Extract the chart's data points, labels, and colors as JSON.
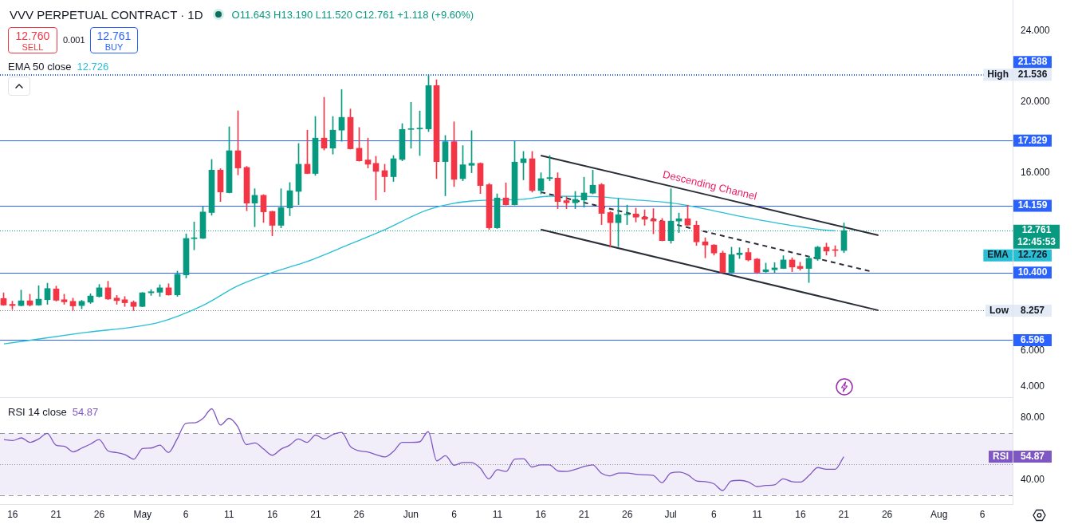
{
  "chart_data": [
    {
      "type": "candlestick",
      "title": "VVV PERPETUAL CONTRACT · 1D",
      "subtitle": "O11.643 H13.190 L11.520 C12.761 +1.118 (+9.60%)",
      "x": [
        "--04-15",
        "--04-16",
        "--04-17",
        "--04-18",
        "--04-19",
        "--04-20",
        "--04-21",
        "--04-22",
        "--04-23",
        "--04-24",
        "--04-25",
        "--04-26",
        "--04-27",
        "--04-28",
        "--04-29",
        "--04-30",
        "--05-01",
        "--05-02",
        "--05-03",
        "--05-04",
        "--05-05",
        "--05-06",
        "--05-07",
        "--05-08",
        "--05-09",
        "--05-10",
        "--05-11",
        "--05-12",
        "--05-13",
        "--05-14",
        "--05-15",
        "--05-16",
        "--05-17",
        "--05-18",
        "--05-19",
        "--05-20",
        "--05-21",
        "--05-22",
        "--05-23",
        "--05-24",
        "--05-25",
        "--05-26",
        "--05-27",
        "--05-28",
        "--05-29",
        "--05-30",
        "--05-31",
        "--06-01",
        "--06-02",
        "--06-03",
        "--06-04",
        "--06-05",
        "--06-06",
        "--06-07",
        "--06-08",
        "--06-09",
        "--06-10",
        "--06-11",
        "--06-12",
        "--06-13",
        "--06-14",
        "--06-15",
        "--06-16",
        "--06-17",
        "--06-18",
        "--06-19",
        "--06-20",
        "--06-21",
        "--06-22",
        "--06-23",
        "--06-24",
        "--06-25",
        "--06-26",
        "--06-27",
        "--06-28",
        "--06-29",
        "--06-30",
        "--07-01",
        "--07-02",
        "--07-03",
        "--07-04",
        "--07-05",
        "--07-06",
        "--07-07",
        "--07-08",
        "--07-09",
        "--07-10",
        "--07-11",
        "--07-12",
        "--07-13",
        "--07-14",
        "--07-15",
        "--07-16",
        "--07-17",
        "--07-18",
        "--07-19",
        "--07-20",
        "--07-21"
      ],
      "ohlc": [
        [
          8.94,
          9.26,
          8.55,
          8.57
        ],
        [
          8.61,
          8.79,
          8.32,
          8.54
        ],
        [
          8.54,
          9.41,
          8.52,
          8.81
        ],
        [
          8.81,
          9.18,
          8.51,
          8.57
        ],
        [
          8.57,
          9.66,
          8.55,
          8.9
        ],
        [
          8.87,
          9.8,
          8.61,
          9.5
        ],
        [
          9.48,
          9.64,
          8.79,
          8.84
        ],
        [
          8.87,
          9.18,
          8.61,
          8.75
        ],
        [
          8.78,
          8.96,
          8.27,
          8.52
        ],
        [
          8.54,
          8.84,
          8.36,
          8.78
        ],
        [
          8.73,
          9.2,
          8.66,
          9.08
        ],
        [
          9.05,
          9.73,
          9.02,
          9.54
        ],
        [
          9.54,
          9.91,
          8.88,
          8.91
        ],
        [
          8.96,
          9.11,
          8.61,
          8.82
        ],
        [
          8.87,
          9.05,
          8.49,
          8.7
        ],
        [
          8.73,
          8.81,
          8.257,
          8.49
        ],
        [
          8.49,
          9.28,
          8.47,
          9.26
        ],
        [
          9.26,
          9.44,
          9.11,
          9.32
        ],
        [
          9.29,
          9.71,
          9.06,
          9.54
        ],
        [
          9.54,
          9.77,
          9.12,
          9.14
        ],
        [
          9.14,
          10.48,
          9.06,
          10.3
        ],
        [
          10.27,
          12.58,
          10.09,
          12.32
        ],
        [
          12.31,
          13.25,
          11.68,
          12.36
        ],
        [
          12.33,
          14.11,
          12.31,
          13.81
        ],
        [
          13.78,
          16.77,
          13.63,
          16.17
        ],
        [
          16.17,
          16.25,
          14.4,
          14.94
        ],
        [
          14.9,
          18.61,
          14.88,
          17.26
        ],
        [
          17.26,
          19.51,
          15.9,
          16.29
        ],
        [
          16.32,
          16.38,
          13.88,
          14.31
        ],
        [
          14.31,
          15.12,
          12.98,
          14.75
        ],
        [
          14.75,
          14.79,
          13.22,
          13.82
        ],
        [
          13.84,
          13.86,
          12.47,
          13.06
        ],
        [
          13.06,
          15.12,
          12.92,
          14.06
        ],
        [
          14.04,
          15.47,
          13.6,
          15.01
        ],
        [
          14.97,
          17.67,
          14.22,
          16.5
        ],
        [
          16.5,
          18.42,
          15.96,
          15.98
        ],
        [
          15.98,
          19.19,
          15.87,
          17.97
        ],
        [
          17.97,
          20.27,
          17.3,
          17.41
        ],
        [
          17.41,
          19.19,
          17.07,
          18.42
        ],
        [
          18.42,
          20.71,
          17.79,
          19.14
        ],
        [
          19.14,
          19.61,
          17.35,
          17.37
        ],
        [
          17.4,
          18.57,
          16.67,
          16.69
        ],
        [
          16.74,
          17.97,
          16.29,
          16.5
        ],
        [
          16.55,
          16.95,
          14.49,
          16.1
        ],
        [
          16.14,
          16.5,
          14.94,
          15.8
        ],
        [
          15.8,
          16.99,
          15.53,
          16.81
        ],
        [
          16.77,
          18.79,
          16.69,
          18.46
        ],
        [
          18.46,
          19.99,
          17.4,
          18.49
        ],
        [
          18.49,
          19.5,
          16.99,
          18.53
        ],
        [
          18.49,
          21.536,
          18.34,
          20.93
        ],
        [
          20.93,
          21.26,
          15.69,
          16.65
        ],
        [
          16.65,
          18.12,
          14.72,
          17.77
        ],
        [
          17.77,
          18.89,
          15.24,
          15.65
        ],
        [
          15.69,
          17.55,
          15.57,
          16.47
        ],
        [
          16.44,
          18.39,
          16.02,
          16.55
        ],
        [
          16.55,
          16.58,
          14.85,
          15.3
        ],
        [
          15.35,
          15.42,
          12.83,
          12.92
        ],
        [
          12.92,
          14.83,
          12.88,
          14.6
        ],
        [
          14.6,
          15.45,
          14.2,
          14.22
        ],
        [
          14.22,
          17.82,
          14.2,
          16.62
        ],
        [
          16.59,
          17.22,
          15.62,
          16.81
        ],
        [
          16.81,
          17.22,
          14.93,
          15.02
        ],
        [
          15.02,
          16.02,
          14.83,
          15.69
        ],
        [
          15.69,
          16.99,
          15.57,
          15.75
        ],
        [
          15.72,
          16.02,
          14.0,
          14.4
        ],
        [
          14.45,
          14.67,
          14.0,
          14.33
        ],
        [
          14.33,
          14.97,
          14.0,
          14.52
        ],
        [
          14.49,
          15.77,
          14.08,
          14.88
        ],
        [
          14.87,
          16.17,
          14.83,
          15.32
        ],
        [
          15.35,
          15.42,
          13.1,
          13.73
        ],
        [
          13.78,
          13.85,
          11.83,
          13.21
        ],
        [
          13.21,
          14.56,
          11.86,
          13.66
        ],
        [
          13.66,
          14.2,
          13.1,
          13.7
        ],
        [
          13.7,
          14.03,
          13.25,
          13.52
        ],
        [
          13.52,
          13.93,
          13.06,
          13.4
        ],
        [
          13.4,
          14.0,
          12.58,
          13.3
        ],
        [
          13.3,
          13.45,
          12.18,
          12.2
        ],
        [
          12.2,
          15.12,
          12.05,
          13.3
        ],
        [
          13.3,
          13.75,
          12.65,
          13.43
        ],
        [
          13.43,
          14.2,
          13.05,
          13.07
        ],
        [
          13.07,
          13.3,
          11.93,
          12.13
        ],
        [
          12.13,
          12.36,
          11.23,
          11.95
        ],
        [
          11.95,
          11.98,
          11.38,
          11.5
        ],
        [
          11.5,
          11.61,
          10.4,
          10.41
        ],
        [
          10.41,
          11.83,
          10.34,
          11.41
        ],
        [
          11.41,
          11.8,
          11.19,
          11.5
        ],
        [
          11.53,
          11.77,
          11.05,
          11.11
        ],
        [
          11.16,
          11.2,
          10.34,
          10.41
        ],
        [
          10.45,
          10.93,
          10.41,
          10.56
        ],
        [
          10.56,
          10.96,
          10.38,
          10.66
        ],
        [
          10.63,
          11.35,
          10.62,
          11.11
        ],
        [
          11.11,
          11.23,
          10.45,
          10.71
        ],
        [
          10.75,
          10.98,
          10.53,
          10.63
        ],
        [
          10.63,
          11.31,
          9.84,
          11.2
        ],
        [
          11.16,
          11.88,
          11.08,
          11.83
        ],
        [
          11.83,
          12.06,
          11.38,
          11.61
        ],
        [
          11.66,
          11.91,
          11.31,
          11.643
        ],
        [
          11.643,
          13.19,
          11.52,
          12.761
        ]
      ],
      "colors": [
        "#f23645",
        "#f23645",
        "#089981",
        "#f23645",
        "#089981",
        "#089981",
        "#f23645",
        "#f23645",
        "#f23645",
        "#089981",
        "#089981",
        "#089981",
        "#f23645",
        "#f23645",
        "#f23645",
        "#f23645",
        "#089981",
        "#089981",
        "#089981",
        "#f23645",
        "#089981",
        "#089981",
        "#089981",
        "#089981",
        "#089981",
        "#f23645",
        "#089981",
        "#f23645",
        "#f23645",
        "#089981",
        "#f23645",
        "#f23645",
        "#089981",
        "#089981",
        "#089981",
        "#f23645",
        "#089981",
        "#f23645",
        "#089981",
        "#089981",
        "#f23645",
        "#f23645",
        "#f23645",
        "#f23645",
        "#f23645",
        "#089981",
        "#089981",
        "#089981",
        "#089981",
        "#089981",
        "#f23645",
        "#089981",
        "#f23645",
        "#089981",
        "#089981",
        "#f23645",
        "#f23645",
        "#089981",
        "#f23645",
        "#089981",
        "#089981",
        "#f23645",
        "#089981",
        "#089981",
        "#f23645",
        "#f23645",
        "#089981",
        "#089981",
        "#089981",
        "#f23645",
        "#f23645",
        "#089981",
        "#089981",
        "#f23645",
        "#f23645",
        "#f23645",
        "#f23645",
        "#089981",
        "#089981",
        "#f23645",
        "#f23645",
        "#f23645",
        "#f23645",
        "#f23645",
        "#089981",
        "#089981",
        "#f23645",
        "#f23645",
        "#089981",
        "#089981",
        "#089981",
        "#f23645",
        "#f23645",
        "#089981",
        "#089981",
        "#f23645",
        "#f23645",
        "#089981"
      ],
      "series": [
        {
          "type": "line",
          "color": "#26bfd6",
          "x": [
            "--04-15",
            "--04-24",
            "--05-03",
            "--05-08",
            "--05-12",
            "--05-16",
            "--05-20",
            "--05-25",
            "--05-29",
            "--06-03",
            "--06-08",
            "--06-14",
            "--06-17",
            "--06-22",
            "--06-26",
            "--07-02",
            "--07-08",
            "--07-14",
            "--07-18",
            "--07-20"
          ],
          "values": [
            6.38,
            7.0,
            7.61,
            8.55,
            9.65,
            10.4,
            11.02,
            12.01,
            12.82,
            13.94,
            14.43,
            14.53,
            14.7,
            14.68,
            14.53,
            14.26,
            13.67,
            13.13,
            12.84,
            12.75
          ]
        },
        {
          "type": "line",
          "color": "#2a2e39",
          "x": [
            "--06-16",
            "--07-25"
          ],
          "values": [
            16.99,
            12.5
          ]
        },
        {
          "type": "line",
          "color": "#2a2e39",
          "x": [
            "--06-16",
            "--07-25"
          ],
          "values": [
            12.82,
            8.27
          ]
        },
        {
          "type": "line",
          "color": "#2a2e39",
          "line_style": "dashed",
          "x": [
            "--06-16",
            "--07-24"
          ],
          "values": [
            14.93,
            10.48
          ]
        }
      ],
      "xlim": [
        "--04-14T13:00",
        "--08-09T12:00"
      ],
      "ylim": [
        3.38,
        25.75
      ],
      "yticks": [
        {
          "value": 4,
          "label": "4.000"
        },
        {
          "value": 6,
          "label": "6.000"
        },
        {
          "value": 16,
          "label": "16.000"
        },
        {
          "value": 20,
          "label": "20.000"
        },
        {
          "value": 24,
          "label": "24.000"
        }
      ],
      "tick_labels": "y",
      "ref_lines": [
        {
          "axis": "y",
          "value": 12.761,
          "label": "12.761\n12:45:53",
          "color": "#089981",
          "line_style": "dotted"
        },
        {
          "axis": "y",
          "value": 21.536,
          "label": "High 21.536",
          "color": "#2962ff",
          "line_style": "dotted"
        },
        {
          "axis": "y",
          "value": 8.257,
          "label": "Low 8.257",
          "color": "#787b86",
          "line_style": "dotted"
        },
        {
          "axis": "y",
          "value": 21.588,
          "label": "21.588",
          "color": "#2962ff",
          "line_style": "dotted"
        },
        {
          "axis": "y",
          "value": 17.829,
          "label": "17.829",
          "color": "#2962ff",
          "line_style": "solid"
        },
        {
          "axis": "y",
          "value": 14.159,
          "label": "14.159",
          "color": "#2962ff",
          "line_style": "solid"
        },
        {
          "axis": "y",
          "value": 10.4,
          "label": "10.400",
          "color": "#2962ff",
          "line_style": "solid"
        },
        {
          "axis": "y",
          "value": 6.596,
          "label": "6.596",
          "color": "#2962ff",
          "line_style": "solid"
        }
      ],
      "annotations": [
        "12.760",
        "SELL",
        "0.001",
        "12.761",
        "BUY",
        "EMA 50 close",
        "12.726",
        "Descending Channel",
        "EMA 12.726"
      ]
    },
    {
      "type": "line",
      "x": [
        "--04-15",
        "--04-16",
        "--04-17",
        "--04-18",
        "--04-19",
        "--04-20",
        "--04-21",
        "--04-22",
        "--04-23",
        "--04-24",
        "--04-25",
        "--04-26",
        "--04-27",
        "--04-28",
        "--04-29",
        "--04-30",
        "--05-01",
        "--05-02",
        "--05-03",
        "--05-04",
        "--05-05",
        "--05-06",
        "--05-07",
        "--05-08",
        "--05-09",
        "--05-10",
        "--05-11",
        "--05-12",
        "--05-13",
        "--05-14",
        "--05-15",
        "--05-16",
        "--05-17",
        "--05-18",
        "--05-19",
        "--05-20",
        "--05-21",
        "--05-22",
        "--05-23",
        "--05-24",
        "--05-25",
        "--05-26",
        "--05-27",
        "--05-28",
        "--05-29",
        "--05-30",
        "--05-31",
        "--06-01",
        "--06-02",
        "--06-03",
        "--06-04",
        "--06-05",
        "--06-06",
        "--06-07",
        "--06-08",
        "--06-09",
        "--06-10",
        "--06-11",
        "--06-12",
        "--06-13",
        "--06-14",
        "--06-15",
        "--06-16",
        "--06-17",
        "--06-18",
        "--06-19",
        "--06-20",
        "--06-21",
        "--06-22",
        "--06-23",
        "--06-24",
        "--06-25",
        "--06-26",
        "--06-27",
        "--06-28",
        "--06-29",
        "--06-30",
        "--07-01",
        "--07-02",
        "--07-03",
        "--07-04",
        "--07-05",
        "--07-06",
        "--07-07",
        "--07-08",
        "--07-09",
        "--07-10",
        "--07-11",
        "--07-12",
        "--07-13",
        "--07-14",
        "--07-15",
        "--07-16",
        "--07-17",
        "--07-18",
        "--07-19",
        "--07-20",
        "--07-21"
      ],
      "series": [
        {
          "color": "#7e57c2",
          "values": [
            66.0,
            65.3,
            67.1,
            64.2,
            66.4,
            70.0,
            62.4,
            61.6,
            58.0,
            60.5,
            63.1,
            66.0,
            58.7,
            57.6,
            56.2,
            53.3,
            60.2,
            60.5,
            62.4,
            57.6,
            66.4,
            76.5,
            76.9,
            79.8,
            86.0,
            75.4,
            79.8,
            74.4,
            62.7,
            63.8,
            59.8,
            55.8,
            59.8,
            62.4,
            66.4,
            64.2,
            68.9,
            66.4,
            69.3,
            70.7,
            61.6,
            58.7,
            58.0,
            56.2,
            54.7,
            58.4,
            64.2,
            64.2,
            64.5,
            71.1,
            52.2,
            55.5,
            49.3,
            51.1,
            51.1,
            47.5,
            40.5,
            46.4,
            45.3,
            53.3,
            53.6,
            48.2,
            49.6,
            49.6,
            45.6,
            45.3,
            46.7,
            48.5,
            49.6,
            44.2,
            42.4,
            44.2,
            44.2,
            43.5,
            43.1,
            42.7,
            38.0,
            44.2,
            44.9,
            43.1,
            39.1,
            38.7,
            37.3,
            32.9,
            39.1,
            39.5,
            38.4,
            35.5,
            36.2,
            36.6,
            40.5,
            38.7,
            38.4,
            42.7,
            47.8,
            46.7,
            46.7,
            54.87
          ]
        }
      ],
      "xlim": [
        "--04-14T13:00",
        "--08-09T12:00"
      ],
      "xticks": [
        {
          "value": "--04-16",
          "label": "16"
        },
        {
          "value": "--04-21",
          "label": "21"
        },
        {
          "value": "--04-26",
          "label": "26"
        },
        {
          "value": "--05-01",
          "label": "May"
        },
        {
          "value": "--05-06",
          "label": "6"
        },
        {
          "value": "--05-11",
          "label": "11"
        },
        {
          "value": "--05-16",
          "label": "16"
        },
        {
          "value": "--05-21",
          "label": "21"
        },
        {
          "value": "--05-26",
          "label": "26"
        },
        {
          "value": "--06-01",
          "label": "Jun"
        },
        {
          "value": "--06-06",
          "label": "6"
        },
        {
          "value": "--06-11",
          "label": "11"
        },
        {
          "value": "--06-16",
          "label": "16"
        },
        {
          "value": "--06-21",
          "label": "21"
        },
        {
          "value": "--06-26",
          "label": "26"
        },
        {
          "value": "--07-01",
          "label": "Jul"
        },
        {
          "value": "--07-06",
          "label": "6"
        },
        {
          "value": "--07-11",
          "label": "11"
        },
        {
          "value": "--07-16",
          "label": "16"
        },
        {
          "value": "--07-21",
          "label": "21"
        },
        {
          "value": "--07-26",
          "label": "26"
        },
        {
          "value": "--08-01",
          "label": "Aug"
        },
        {
          "value": "--08-06",
          "label": "6"
        }
      ],
      "ylim": [
        24.1,
        93.0
      ],
      "yticks": [
        {
          "value": 80,
          "label": "80.00"
        },
        {
          "value": 40,
          "label": "40.00"
        }
      ],
      "bands": [
        {
          "axis": "y",
          "from": 30,
          "to": 70,
          "color": "#f2eef9"
        }
      ],
      "ref_lines": [
        {
          "axis": "y",
          "value": 70,
          "color": "#9598a1",
          "line_style": "dashed"
        },
        {
          "axis": "y",
          "value": 50,
          "color": "#9598a1",
          "line_style": "dotted"
        },
        {
          "axis": "y",
          "value": 30,
          "color": "#9598a1",
          "line_style": "dashed"
        }
      ],
      "annotations": [
        "RSI 14 close",
        "54.87",
        "RSI 54.87"
      ]
    }
  ]
}
